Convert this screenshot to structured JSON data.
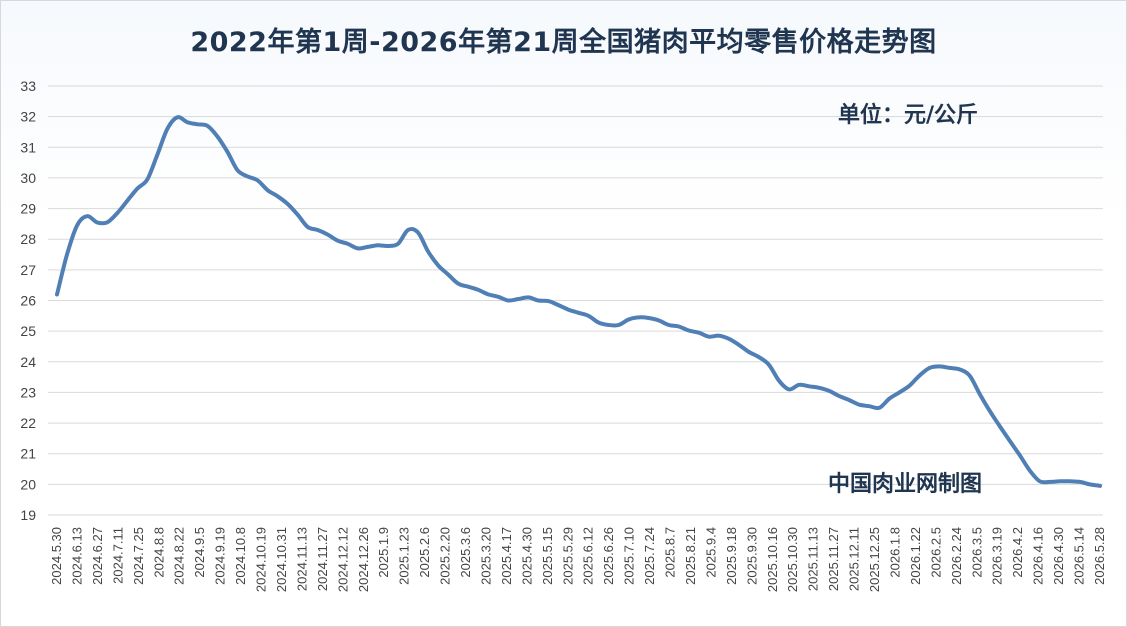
{
  "chart_data": {
    "type": "line",
    "title": "2022年第1周-2026年第21周全国猪肉平均零售价格走势图",
    "unit_label": "单位：元/公斤",
    "source_label": "中国肉业网制图",
    "ylim": [
      19,
      33
    ],
    "yticks": [
      19,
      20,
      21,
      22,
      23,
      24,
      25,
      26,
      27,
      28,
      29,
      30,
      31,
      32,
      33
    ],
    "grid": true,
    "series_color": "#4f7fb5",
    "x_tick_labels": [
      "2024.5.30",
      "2024.6.13",
      "2024.6.27",
      "2024.7.11",
      "2024.7.25",
      "2024.8.8",
      "2024.8.22",
      "2024.9.5",
      "2024.9.19",
      "2024.10.8",
      "2024.10.19",
      "2024.10.31",
      "2024.11.13",
      "2024.11.27",
      "2024.12.12",
      "2024.12.26",
      "2025.1.9",
      "2025.1.23",
      "2025.2.6",
      "2025.2.20",
      "2025.3.6",
      "2025.3.20",
      "2025.4.17",
      "2025.4.30",
      "2025.5.15",
      "2025.5.29",
      "2025.6.12",
      "2025.6.26",
      "2025.7.10",
      "2025.7.24",
      "2025.8.7",
      "2025.8.21",
      "2025.9.4",
      "2025.9.18",
      "2025.9.30",
      "2025.10.16",
      "2025.10.30",
      "2025.11.13",
      "2025.11.27",
      "2025.12.11",
      "2025.12.25",
      "2026.1.8",
      "2026.1.22",
      "2026.2.5",
      "2026.2.24",
      "2026.3.5",
      "2026.3.19",
      "2026.4.2",
      "2026.4.16",
      "2026.4.30",
      "2026.5.14",
      "2026.5.28"
    ],
    "values": [
      26.2,
      27.5,
      28.45,
      28.75,
      28.55,
      28.55,
      28.85,
      29.25,
      29.65,
      29.95,
      30.75,
      31.6,
      31.98,
      31.82,
      31.75,
      31.7,
      31.35,
      30.85,
      30.25,
      30.05,
      29.92,
      29.6,
      29.4,
      29.15,
      28.8,
      28.4,
      28.3,
      28.15,
      27.95,
      27.85,
      27.7,
      27.75,
      27.8,
      27.78,
      27.85,
      28.3,
      28.22,
      27.6,
      27.15,
      26.85,
      26.55,
      26.45,
      26.35,
      26.2,
      26.12,
      26.0,
      26.05,
      26.1,
      26.0,
      25.98,
      25.85,
      25.7,
      25.6,
      25.5,
      25.28,
      25.2,
      25.2,
      25.38,
      25.45,
      25.43,
      25.35,
      25.2,
      25.15,
      25.02,
      24.95,
      24.82,
      24.85,
      24.75,
      24.55,
      24.32,
      24.15,
      23.9,
      23.38,
      23.1,
      23.25,
      23.2,
      23.15,
      23.05,
      22.88,
      22.75,
      22.6,
      22.55,
      22.5,
      22.8,
      23.0,
      23.22,
      23.55,
      23.8,
      23.85,
      23.8,
      23.75,
      23.55,
      22.95,
      22.4,
      21.9,
      21.42,
      20.95,
      20.45,
      20.1,
      20.08,
      20.1,
      20.1,
      20.08,
      20.0,
      19.95
    ]
  }
}
